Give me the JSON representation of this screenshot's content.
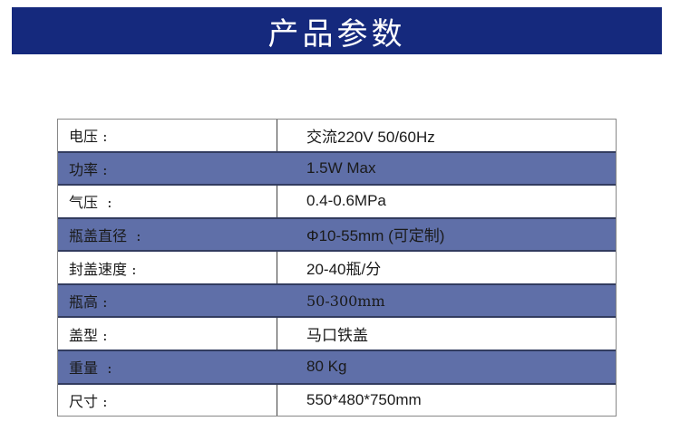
{
  "page": {
    "title": "产品参数"
  },
  "colors": {
    "banner_bg": "#15297d",
    "banner_text": "#ffffff",
    "highlight_row_bg": "#5f6fa8",
    "highlight_row_border": "#323c5f",
    "table_border": "#878787",
    "text": "#1a1a1a"
  },
  "table": {
    "rows": [
      {
        "label": "电压 :",
        "value": "交流220V 50/60Hz",
        "highlight": false
      },
      {
        "label": "功率 :",
        "value": "1.5W Max",
        "highlight": true
      },
      {
        "label": "气压  :",
        "value": "0.4-0.6MPa",
        "highlight": false
      },
      {
        "label": "瓶盖直径  :",
        "value": "Φ10-55mm (可定制)",
        "highlight": true
      },
      {
        "label": "封盖速度 :",
        "value": "20-40瓶/分",
        "highlight": false
      },
      {
        "label": "瓶高 :",
        "value": "50-300mm",
        "highlight": true
      },
      {
        "label": "盖型 :",
        "value": "马口铁盖",
        "highlight": false
      },
      {
        "label": "重量  :",
        "value": "80 Kg",
        "highlight": true
      },
      {
        "label": "尺寸 :",
        "value": "550*480*750mm",
        "highlight": false
      }
    ]
  }
}
